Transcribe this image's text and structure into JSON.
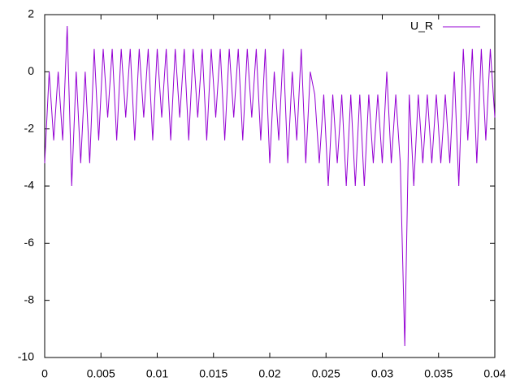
{
  "chart_data": {
    "type": "line",
    "x": [
      0,
      0.0004,
      0.0008,
      0.0012,
      0.0016,
      0.002,
      0.0024,
      0.0028,
      0.0032,
      0.0036,
      0.004,
      0.0044,
      0.0048,
      0.0052,
      0.0056,
      0.006,
      0.0064,
      0.0068,
      0.0072,
      0.0076,
      0.008,
      0.0084,
      0.0088,
      0.0092,
      0.0096,
      0.01,
      0.0104,
      0.0108,
      0.0112,
      0.0116,
      0.012,
      0.0124,
      0.0128,
      0.0132,
      0.0136,
      0.014,
      0.0144,
      0.0148,
      0.0152,
      0.0156,
      0.016,
      0.0164,
      0.0168,
      0.0172,
      0.0176,
      0.018,
      0.0184,
      0.0188,
      0.0192,
      0.0196,
      0.02,
      0.0204,
      0.0208,
      0.0212,
      0.0216,
      0.022,
      0.0224,
      0.0228,
      0.0232,
      0.0236,
      0.024,
      0.0244,
      0.0248,
      0.0252,
      0.0256,
      0.026,
      0.0264,
      0.0268,
      0.0272,
      0.0276,
      0.028,
      0.0284,
      0.0288,
      0.0292,
      0.0296,
      0.03,
      0.0304,
      0.0308,
      0.0312,
      0.0316,
      0.032,
      0.0324,
      0.0328,
      0.0332,
      0.0336,
      0.034,
      0.0344,
      0.0348,
      0.0352,
      0.0356,
      0.036,
      0.0364,
      0.0368,
      0.0372,
      0.0376,
      0.038,
      0.0384,
      0.0388,
      0.0392,
      0.0396,
      0.04
    ],
    "series": [
      {
        "name": "U_R",
        "color": "#9400d3",
        "values": [
          -3.2,
          0,
          -2.4,
          0,
          -2.4,
          1.6,
          -4,
          0,
          -3.2,
          0,
          -3.2,
          0.8,
          -2.4,
          0.8,
          -1.6,
          0.8,
          -2.4,
          0.8,
          -1.6,
          0.8,
          -2.4,
          0.8,
          -1.6,
          0.8,
          -2.4,
          0.8,
          -1.6,
          0.8,
          -2.4,
          0.8,
          -1.6,
          0.8,
          -2.4,
          0.8,
          -1.6,
          0.8,
          -2.4,
          0.8,
          -1.6,
          0.8,
          -2.4,
          0.8,
          -1.6,
          0.8,
          -2.4,
          0.8,
          -1.6,
          0.8,
          -2.4,
          0.8,
          -3.2,
          0,
          -2.4,
          0.8,
          -3.2,
          0,
          -2.4,
          0.8,
          -3.2,
          0,
          -0.8,
          -3.2,
          -0.8,
          -4,
          -0.8,
          -3.2,
          -0.8,
          -4,
          -0.8,
          -4,
          -0.8,
          -4,
          -0.8,
          -3.2,
          -0.8,
          -3.2,
          0,
          -3.2,
          -0.8,
          -3.2,
          -9.6,
          -0.8,
          -4,
          -0.8,
          -3.2,
          -0.8,
          -3.2,
          -0.8,
          -3.2,
          -0.8,
          -3.2,
          0,
          -4,
          0.8,
          -2.4,
          0.8,
          -3.2,
          0.8,
          -2.4,
          0.8,
          -1.6
        ]
      }
    ],
    "xlim": [
      0,
      0.04
    ],
    "xticks": [
      0,
      0.005,
      0.01,
      0.015,
      0.02,
      0.025,
      0.03,
      0.035,
      0.04
    ],
    "ylim": [
      -10,
      2
    ],
    "yticks": [
      -10,
      -8,
      -6,
      -4,
      -2,
      0,
      2
    ],
    "legend": "top-right"
  }
}
